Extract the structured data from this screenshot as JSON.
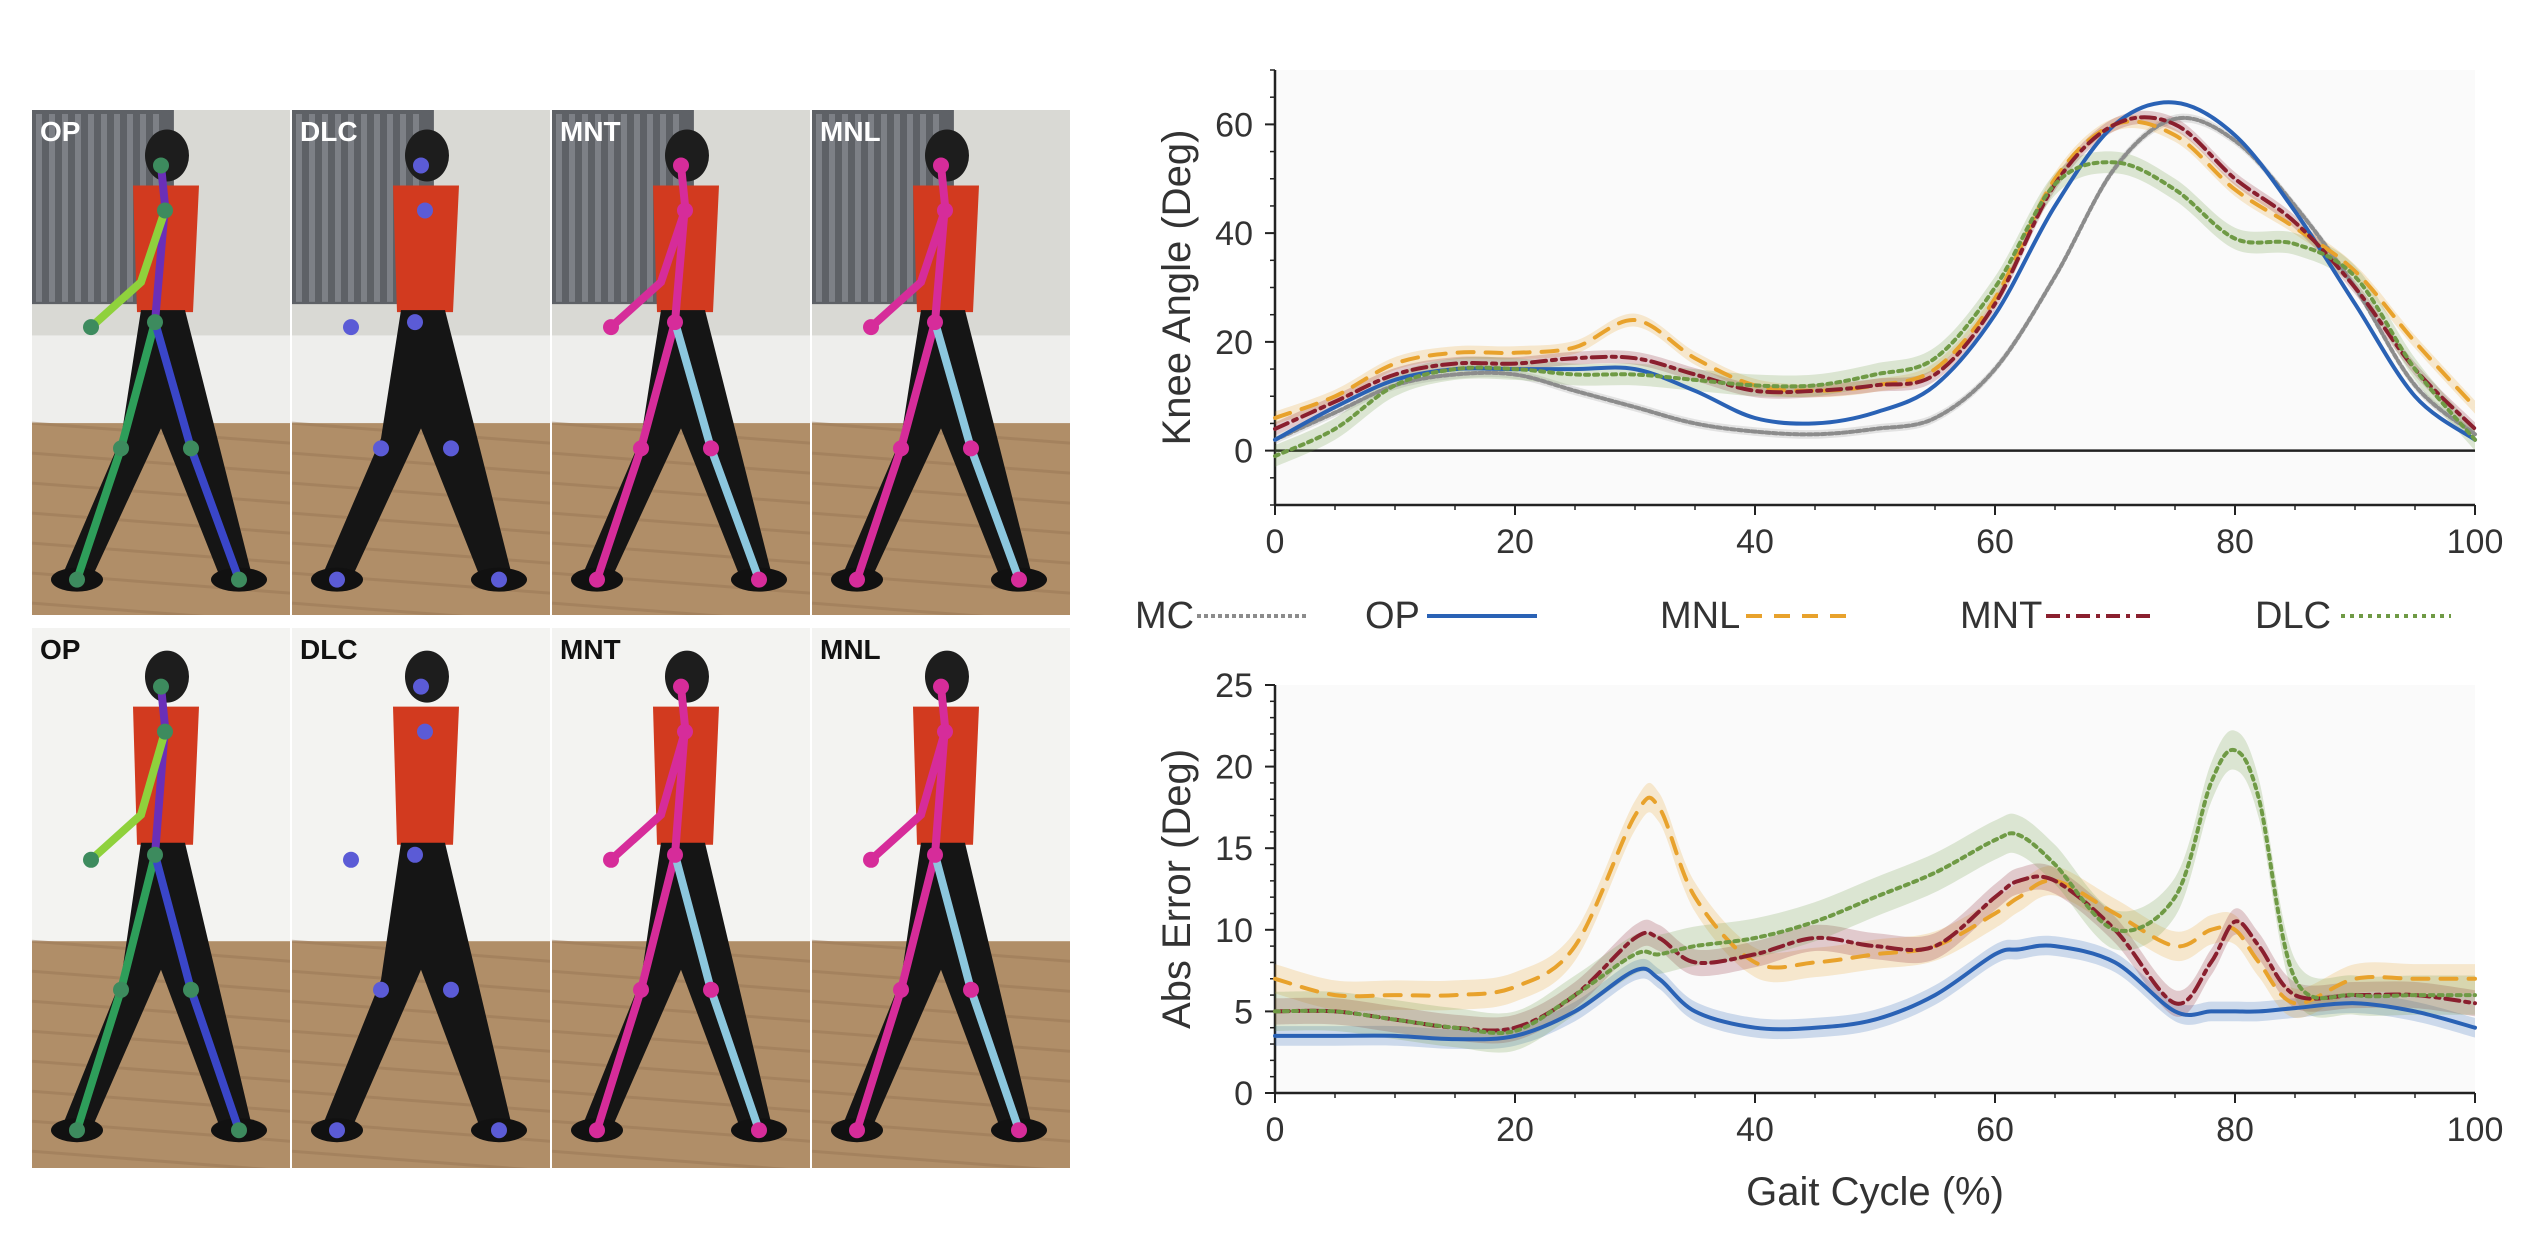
{
  "photo_panels": {
    "top": [
      {
        "label": "OP",
        "bg": "photo-wall",
        "model": "op"
      },
      {
        "label": "DLC",
        "bg": "photo-wall",
        "model": "dlc"
      },
      {
        "label": "MNT",
        "bg": "photo-wall",
        "model": "mnt"
      },
      {
        "label": "MNL",
        "bg": "photo-wall",
        "model": "mnl"
      }
    ],
    "bottom": [
      {
        "label": "OP",
        "bg": "white-wall",
        "model": "op"
      },
      {
        "label": "DLC",
        "bg": "white-wall",
        "model": "dlc"
      },
      {
        "label": "MNT",
        "bg": "white-wall",
        "model": "mnt"
      },
      {
        "label": "MNL",
        "bg": "white-wall",
        "model": "mnl"
      }
    ]
  },
  "legend": [
    {
      "key": "MC",
      "label": "MC",
      "color": "#8c8c8c",
      "dash": "4,3"
    },
    {
      "key": "OP",
      "label": "OP",
      "color": "#2a62b5",
      "dash": ""
    },
    {
      "key": "MNL",
      "label": "MNL",
      "color": "#e8a22c",
      "dash": "16,12"
    },
    {
      "key": "MNT",
      "label": "MNT",
      "color": "#8a1f2e",
      "dash": "14,6,4,6"
    },
    {
      "key": "DLC",
      "label": "DLC",
      "color": "#6f9a45",
      "dash": "4,5"
    }
  ],
  "chart_data": [
    {
      "type": "line",
      "title": "",
      "ylabel": "Knee Angle (Deg)",
      "xlabel": "",
      "xlim": [
        0,
        100
      ],
      "ylim": [
        -10,
        70
      ],
      "xticks": [
        "0",
        "20",
        "40",
        "60",
        "80",
        "100"
      ],
      "yticks": [
        "0",
        "20",
        "40",
        "60"
      ],
      "x": [
        0,
        5,
        10,
        15,
        20,
        25,
        30,
        35,
        40,
        45,
        50,
        55,
        60,
        65,
        70,
        75,
        80,
        85,
        90,
        95,
        100
      ],
      "series": [
        {
          "name": "MC",
          "values": [
            2,
            7,
            12,
            14,
            14,
            11,
            8,
            5,
            3.5,
            3,
            4,
            6,
            15,
            32,
            52,
            61,
            57,
            45,
            30,
            12,
            3
          ],
          "band": 0.8
        },
        {
          "name": "OP",
          "values": [
            2,
            8,
            13,
            15,
            15,
            15,
            15,
            11,
            6,
            5,
            7,
            12,
            25,
            45,
            60,
            64,
            58,
            44,
            27,
            10,
            2
          ],
          "band": 0
        },
        {
          "name": "MNL",
          "values": [
            6,
            10,
            16,
            18,
            18,
            19,
            24,
            17,
            12,
            11,
            12,
            15,
            28,
            50,
            60,
            58,
            48,
            41,
            33,
            20,
            8
          ],
          "band": 1.2
        },
        {
          "name": "MNT",
          "values": [
            4,
            9,
            14,
            16,
            16,
            17,
            17,
            14,
            11,
            11,
            12,
            14,
            27,
            49,
            60,
            60,
            50,
            42,
            30,
            15,
            4
          ],
          "band": 1.2
        },
        {
          "name": "DLC",
          "values": [
            -1,
            4,
            12,
            15,
            15,
            14,
            14,
            13,
            12,
            12,
            14,
            17,
            30,
            49,
            53,
            48,
            39,
            38,
            32,
            15,
            2
          ],
          "band": 2.0
        }
      ]
    },
    {
      "type": "line",
      "title": "",
      "ylabel": "Abs Error (Deg)",
      "xlabel": "Gait Cycle (%)",
      "xlim": [
        0,
        100
      ],
      "ylim": [
        0,
        25
      ],
      "xticks": [
        "0",
        "20",
        "40",
        "60",
        "80",
        "100"
      ],
      "yticks": [
        "0",
        "5",
        "10",
        "15",
        "20",
        "25"
      ],
      "x": [
        0,
        5,
        10,
        15,
        20,
        25,
        30,
        32,
        35,
        40,
        45,
        50,
        55,
        60,
        62,
        65,
        70,
        75,
        78,
        80,
        82,
        85,
        90,
        95,
        100
      ],
      "series": [
        {
          "name": "OP",
          "values": [
            3.5,
            3.5,
            3.5,
            3.3,
            3.5,
            5,
            7.5,
            7,
            5,
            4,
            4,
            4.5,
            6,
            8.5,
            8.8,
            9,
            8,
            5,
            5,
            5,
            5,
            5.2,
            5.5,
            5,
            4
          ],
          "band": 0.6
        },
        {
          "name": "MNL",
          "values": [
            7,
            6,
            6,
            6,
            6.5,
            9,
            17,
            17.5,
            12,
            8,
            8,
            8.5,
            9,
            11,
            12,
            13,
            11,
            9,
            10,
            10,
            8,
            5.5,
            7,
            7,
            7
          ],
          "band": 0.9
        },
        {
          "name": "MNT",
          "values": [
            5,
            5,
            4.5,
            4,
            4,
            6,
            9.5,
            9.5,
            8,
            8.5,
            9.5,
            9,
            9,
            12,
            13,
            13,
            10,
            5.5,
            8,
            10.5,
            9,
            6,
            6,
            6,
            5.5
          ],
          "band": 0.8
        },
        {
          "name": "DLC",
          "values": [
            5,
            5,
            4.5,
            4,
            3.8,
            6,
            8.5,
            8.5,
            9,
            9.5,
            10.5,
            12,
            13.5,
            15.5,
            15.8,
            14,
            10,
            12,
            19,
            21,
            18,
            7,
            6,
            6,
            6
          ],
          "band": 1.2
        }
      ]
    }
  ]
}
